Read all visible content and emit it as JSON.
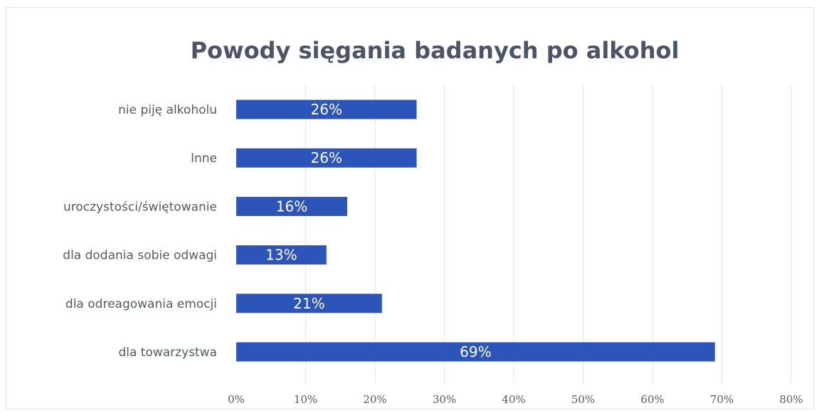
{
  "chart_data": {
    "type": "bar",
    "orientation": "horizontal",
    "title": "Powody sięgania badanych po alkohol",
    "categories": [
      "nie piję alkoholu",
      "Inne",
      "uroczystości/świętowanie",
      "dla dodania sobie odwagi",
      "dla odreagowania emocji",
      "dla towarzystwa"
    ],
    "values": [
      26,
      26,
      16,
      13,
      21,
      69
    ],
    "data_labels": [
      "26%",
      "26%",
      "16%",
      "13%",
      "21%",
      "69%"
    ],
    "xlim": [
      0,
      80
    ],
    "x_ticks": [
      0,
      10,
      20,
      30,
      40,
      50,
      60,
      70,
      80
    ],
    "x_tick_labels": [
      "0%",
      "10%",
      "20%",
      "30%",
      "40%",
      "50%",
      "60%",
      "70%",
      "80%"
    ],
    "grid": true,
    "legend": "none",
    "bar_color": "#2b55b8"
  }
}
